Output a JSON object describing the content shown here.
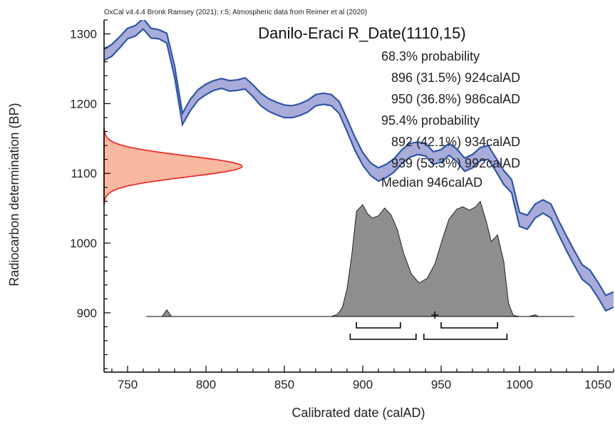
{
  "header_note": "OxCal v4.4.4 Bronk Ramsey (2021); r:5; Atmospheric data from Reimer et al (2020)",
  "colors": {
    "calibration_fill": "#a9acd8",
    "calibration_stroke": "#2f55a8",
    "radiocarbon_fill": "#f9b9a1",
    "radiocarbon_stroke": "#e8312b",
    "posterior_fill": "#8e8e8e",
    "axis": "#000000"
  },
  "chart_data": {
    "type": "area",
    "title": "Danilo-Eraci R_Date(1110,15)",
    "xlabel": "Calibrated date (calAD)",
    "ylabel": "Radiocarbon determination (BP)",
    "xlim": [
      735,
      1060
    ],
    "ylim": [
      815,
      1320
    ],
    "x_ticks": [
      750,
      800,
      850,
      900,
      950,
      1000,
      1050
    ],
    "y_ticks": [
      900,
      1000,
      1100,
      1200,
      1300
    ],
    "summary_lines": [
      "68.3% probability",
      "896 (31.5%) 924calAD",
      "950 (36.8%) 986calAD",
      "95.4% probability",
      "892 (42.1%) 934calAD",
      "939 (53.3%) 992calAD",
      "Median 946calAD"
    ],
    "calibration_curve": [
      [
        735,
        1262,
        1278
      ],
      [
        740,
        1268,
        1285
      ],
      [
        745,
        1280,
        1296
      ],
      [
        750,
        1293,
        1308
      ],
      [
        755,
        1297,
        1312
      ],
      [
        760,
        1307,
        1322
      ],
      [
        765,
        1294,
        1308
      ],
      [
        770,
        1293,
        1306
      ],
      [
        775,
        1287,
        1301
      ],
      [
        780,
        1238,
        1254
      ],
      [
        785,
        1170,
        1186
      ],
      [
        790,
        1190,
        1206
      ],
      [
        795,
        1205,
        1220
      ],
      [
        800,
        1213,
        1228
      ],
      [
        805,
        1219,
        1233
      ],
      [
        810,
        1222,
        1236
      ],
      [
        815,
        1218,
        1233
      ],
      [
        820,
        1219,
        1234
      ],
      [
        825,
        1221,
        1237
      ],
      [
        830,
        1210,
        1227
      ],
      [
        835,
        1197,
        1215
      ],
      [
        840,
        1189,
        1207
      ],
      [
        845,
        1184,
        1202
      ],
      [
        850,
        1180,
        1198
      ],
      [
        855,
        1180,
        1197
      ],
      [
        860,
        1183,
        1200
      ],
      [
        865,
        1188,
        1205
      ],
      [
        870,
        1197,
        1213
      ],
      [
        875,
        1199,
        1215
      ],
      [
        880,
        1197,
        1213
      ],
      [
        885,
        1186,
        1203
      ],
      [
        890,
        1160,
        1178
      ],
      [
        895,
        1133,
        1152
      ],
      [
        900,
        1112,
        1130
      ],
      [
        905,
        1097,
        1115
      ],
      [
        910,
        1089,
        1108
      ],
      [
        915,
        1094,
        1113
      ],
      [
        920,
        1102,
        1121
      ],
      [
        925,
        1114,
        1134
      ],
      [
        930,
        1123,
        1143
      ],
      [
        935,
        1127,
        1145
      ],
      [
        940,
        1125,
        1143
      ],
      [
        945,
        1113,
        1131
      ],
      [
        950,
        1116,
        1134
      ],
      [
        955,
        1126,
        1143
      ],
      [
        960,
        1117,
        1135
      ],
      [
        965,
        1103,
        1122
      ],
      [
        970,
        1108,
        1127
      ],
      [
        975,
        1118,
        1137
      ],
      [
        980,
        1120,
        1140
      ],
      [
        985,
        1103,
        1122
      ],
      [
        990,
        1084,
        1104
      ],
      [
        995,
        1072,
        1091
      ],
      [
        1000,
        1024,
        1044
      ],
      [
        1005,
        1020,
        1040
      ],
      [
        1010,
        1036,
        1056
      ],
      [
        1015,
        1043,
        1062
      ],
      [
        1020,
        1036,
        1056
      ],
      [
        1025,
        1012,
        1032
      ],
      [
        1030,
        989,
        1010
      ],
      [
        1035,
        968,
        989
      ],
      [
        1040,
        948,
        969
      ],
      [
        1045,
        939,
        961
      ],
      [
        1050,
        922,
        944
      ],
      [
        1055,
        903,
        925
      ],
      [
        1060,
        908,
        930
      ]
    ],
    "radiocarbon_bp": {
      "mean": 1110,
      "sigma": 15,
      "peak_calAD": 823
    },
    "posterior": {
      "baseline_range": [
        762,
        1035
      ],
      "points": [
        [
          762,
          0
        ],
        [
          772,
          0
        ],
        [
          775,
          0.06
        ],
        [
          778,
          0
        ],
        [
          800,
          0
        ],
        [
          850,
          0
        ],
        [
          880,
          0
        ],
        [
          884,
          0.02
        ],
        [
          887,
          0.08
        ],
        [
          890,
          0.25
        ],
        [
          893,
          0.55
        ],
        [
          896,
          0.94
        ],
        [
          900,
          1.0
        ],
        [
          903,
          0.92
        ],
        [
          906,
          0.88
        ],
        [
          910,
          0.9
        ],
        [
          914,
          0.97
        ],
        [
          918,
          0.91
        ],
        [
          922,
          0.78
        ],
        [
          926,
          0.57
        ],
        [
          931,
          0.38
        ],
        [
          936,
          0.3
        ],
        [
          941,
          0.34
        ],
        [
          946,
          0.47
        ],
        [
          951,
          0.7
        ],
        [
          955,
          0.87
        ],
        [
          960,
          0.96
        ],
        [
          964,
          0.98
        ],
        [
          968,
          0.95
        ],
        [
          972,
          0.98
        ],
        [
          975,
          1.03
        ],
        [
          979,
          0.84
        ],
        [
          982,
          0.67
        ],
        [
          986,
          0.73
        ],
        [
          990,
          0.49
        ],
        [
          993,
          0.12
        ],
        [
          996,
          0.01
        ],
        [
          1000,
          0
        ],
        [
          1006,
          0
        ],
        [
          1010,
          0.015
        ],
        [
          1012,
          0
        ],
        [
          1020,
          0
        ],
        [
          1035,
          0
        ]
      ],
      "median": 946,
      "range_68": [
        [
          896,
          924
        ],
        [
          950,
          986
        ]
      ],
      "range_95": [
        [
          892,
          934
        ],
        [
          939,
          992
        ]
      ]
    }
  }
}
